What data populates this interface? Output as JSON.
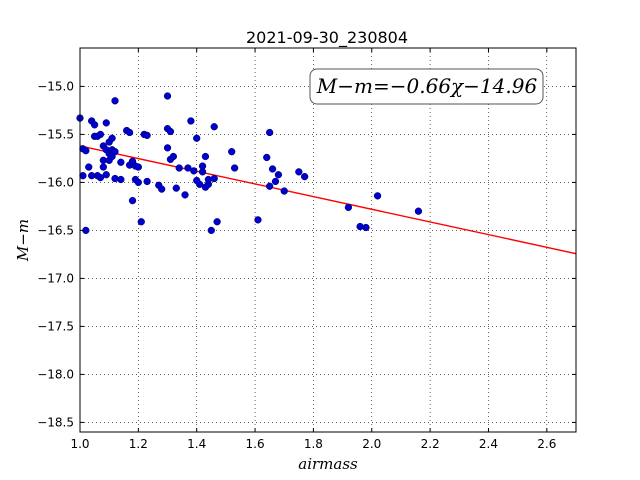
{
  "chart_data": {
    "type": "scatter",
    "title": "2021-09-30_230804",
    "xlabel": "airmass",
    "ylabel": "M−m",
    "xlim": [
      1.0,
      2.7
    ],
    "ylim": [
      -18.6,
      -14.6
    ],
    "y_inverted": true,
    "x_ticks": [
      "1.0",
      "1.2",
      "1.4",
      "1.6",
      "1.8",
      "2.0",
      "2.2",
      "2.4",
      "2.6"
    ],
    "y_ticks": [
      "−15.0",
      "−15.5",
      "−16.0",
      "−16.5",
      "−17.0",
      "−17.5",
      "−18.0",
      "−18.5"
    ],
    "grid": true,
    "annotation": "M−m=−0.66χ−14.96",
    "fit": {
      "slope": -0.66,
      "intercept": -14.96,
      "color": "#ff0000"
    },
    "point_color": "#0000cc",
    "points": [
      [
        1.0,
        -15.33
      ],
      [
        1.01,
        -15.65
      ],
      [
        1.01,
        -15.93
      ],
      [
        1.02,
        -15.67
      ],
      [
        1.02,
        -16.5
      ],
      [
        1.03,
        -15.84
      ],
      [
        1.04,
        -15.36
      ],
      [
        1.04,
        -15.93
      ],
      [
        1.05,
        -15.4
      ],
      [
        1.05,
        -15.52
      ],
      [
        1.06,
        -15.52
      ],
      [
        1.06,
        -15.93
      ],
      [
        1.07,
        -15.5
      ],
      [
        1.07,
        -15.95
      ],
      [
        1.08,
        -15.62
      ],
      [
        1.08,
        -15.77
      ],
      [
        1.08,
        -15.84
      ],
      [
        1.09,
        -15.66
      ],
      [
        1.09,
        -15.92
      ],
      [
        1.09,
        -15.38
      ],
      [
        1.1,
        -15.58
      ],
      [
        1.1,
        -15.7
      ],
      [
        1.1,
        -15.77
      ],
      [
        1.11,
        -15.66
      ],
      [
        1.11,
        -15.73
      ],
      [
        1.11,
        -15.54
      ],
      [
        1.12,
        -15.15
      ],
      [
        1.12,
        -15.68
      ],
      [
        1.12,
        -15.96
      ],
      [
        1.14,
        -15.79
      ],
      [
        1.14,
        -15.97
      ],
      [
        1.16,
        -15.46
      ],
      [
        1.17,
        -15.48
      ],
      [
        1.17,
        -15.82
      ],
      [
        1.18,
        -15.78
      ],
      [
        1.18,
        -16.19
      ],
      [
        1.19,
        -15.83
      ],
      [
        1.19,
        -15.97
      ],
      [
        1.2,
        -15.84
      ],
      [
        1.2,
        -16.0
      ],
      [
        1.21,
        -16.41
      ],
      [
        1.22,
        -15.5
      ],
      [
        1.23,
        -15.51
      ],
      [
        1.23,
        -15.99
      ],
      [
        1.27,
        -16.03
      ],
      [
        1.28,
        -16.07
      ],
      [
        1.3,
        -15.1
      ],
      [
        1.3,
        -15.44
      ],
      [
        1.3,
        -15.64
      ],
      [
        1.31,
        -15.47
      ],
      [
        1.31,
        -15.76
      ],
      [
        1.32,
        -15.73
      ],
      [
        1.33,
        -16.06
      ],
      [
        1.34,
        -15.85
      ],
      [
        1.36,
        -16.13
      ],
      [
        1.37,
        -15.85
      ],
      [
        1.38,
        -15.36
      ],
      [
        1.39,
        -15.88
      ],
      [
        1.4,
        -15.98
      ],
      [
        1.4,
        -15.54
      ],
      [
        1.41,
        -16.02
      ],
      [
        1.42,
        -15.83
      ],
      [
        1.42,
        -15.89
      ],
      [
        1.43,
        -15.73
      ],
      [
        1.43,
        -16.05
      ],
      [
        1.44,
        -15.97
      ],
      [
        1.44,
        -16.02
      ],
      [
        1.45,
        -16.5
      ],
      [
        1.46,
        -15.42
      ],
      [
        1.46,
        -15.96
      ],
      [
        1.47,
        -16.41
      ],
      [
        1.52,
        -15.68
      ],
      [
        1.53,
        -15.85
      ],
      [
        1.61,
        -16.39
      ],
      [
        1.64,
        -15.74
      ],
      [
        1.65,
        -15.48
      ],
      [
        1.65,
        -16.04
      ],
      [
        1.66,
        -15.86
      ],
      [
        1.67,
        -15.99
      ],
      [
        1.68,
        -15.92
      ],
      [
        1.7,
        -16.09
      ],
      [
        1.75,
        -15.89
      ],
      [
        1.77,
        -15.94
      ],
      [
        1.92,
        -16.26
      ],
      [
        1.96,
        -16.46
      ],
      [
        1.98,
        -16.47
      ],
      [
        2.02,
        -16.14
      ],
      [
        2.16,
        -16.3
      ]
    ]
  }
}
